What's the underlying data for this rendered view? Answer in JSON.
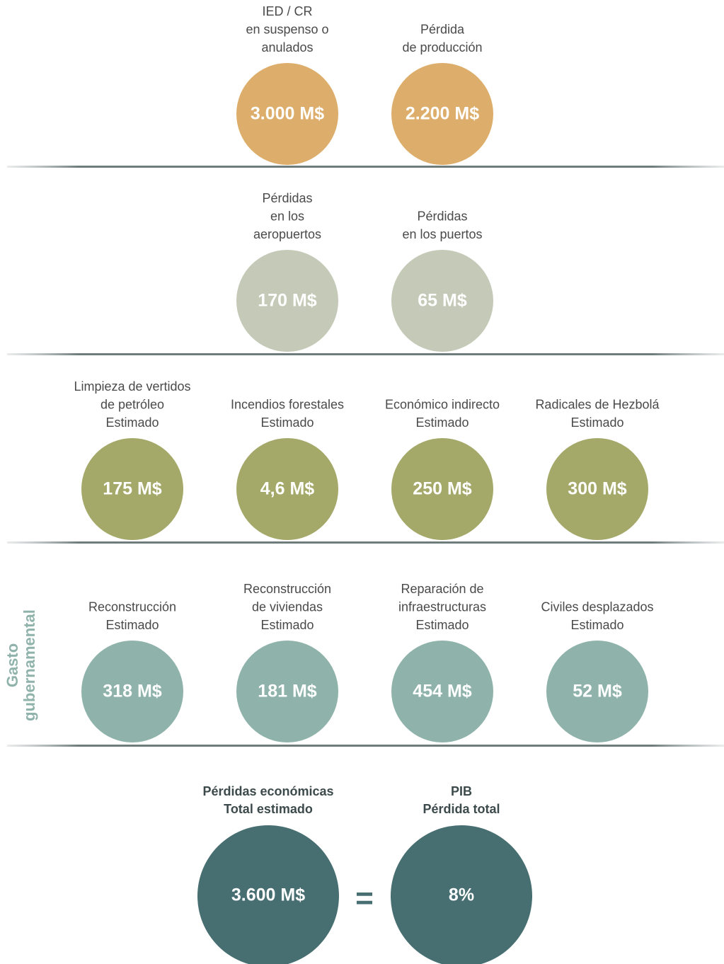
{
  "rows": [
    {
      "items": [
        {
          "label": [
            "IED / CR",
            "en suspenso o",
            "anulados"
          ],
          "value": "3.000 M$"
        },
        {
          "label": [
            "Pérdida",
            "de producción"
          ],
          "value": "2.200 M$"
        }
      ]
    },
    {
      "items": [
        {
          "label": [
            "Pérdidas",
            "en los",
            "aeropuertos"
          ],
          "value": "170 M$"
        },
        {
          "label": [
            "Pérdidas",
            "en los puertos"
          ],
          "value": "65 M$"
        }
      ]
    },
    {
      "items": [
        {
          "label": [
            "Limpieza de vertidos",
            "de petróleo",
            "Estimado"
          ],
          "value": "175 M$"
        },
        {
          "label": [
            "Incendios forestales",
            "Estimado"
          ],
          "value": "4,6 M$"
        },
        {
          "label": [
            "Económico indirecto",
            "Estimado"
          ],
          "value": "250 M$"
        },
        {
          "label": [
            "Radicales de Hezbolá",
            "Estimado"
          ],
          "value": "300 M$"
        }
      ]
    },
    {
      "side_label": [
        "Gasto",
        "gubernamental"
      ],
      "items": [
        {
          "label": [
            "Reconstrucción",
            "Estimado"
          ],
          "value": "318 M$"
        },
        {
          "label": [
            "Reconstrucción",
            "de viviendas",
            "Estimado"
          ],
          "value": "181 M$"
        },
        {
          "label": [
            "Reparación de",
            "infraestructuras",
            "Estimado"
          ],
          "value": "454 M$"
        },
        {
          "label": [
            "Civiles desplazados",
            "Estimado"
          ],
          "value": "52 M$"
        }
      ]
    }
  ],
  "totals": {
    "items": [
      {
        "label": [
          "Pérdidas económicas",
          "Total estimado"
        ],
        "value": "3.600 M$"
      },
      {
        "label": [
          "PIB",
          "Pérdida total"
        ],
        "value": "8%"
      }
    ],
    "operator": "="
  }
}
